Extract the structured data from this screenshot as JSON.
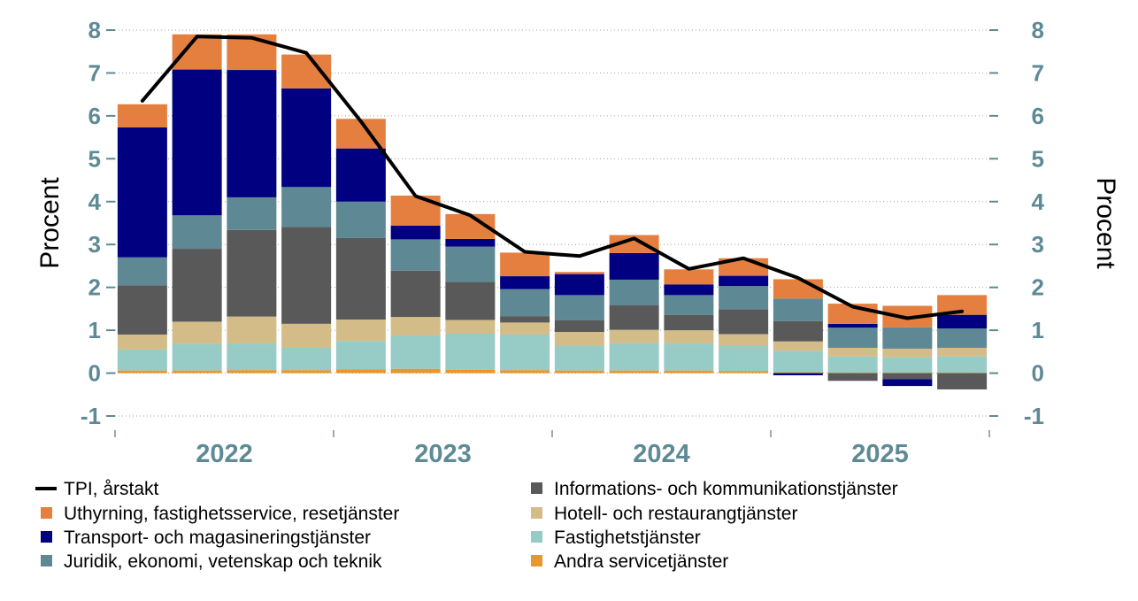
{
  "chart_data": {
    "type": "bar",
    "stacked": true,
    "title": "",
    "xlabel": "",
    "ylabel_left": "Procent",
    "ylabel_right": "Procent",
    "ylim": [
      -1,
      8
    ],
    "yticks": [
      "-1",
      "0",
      "1",
      "2",
      "3",
      "4",
      "5",
      "6",
      "7",
      "8"
    ],
    "year_labels": [
      "2022",
      "2023",
      "2024",
      "2025"
    ],
    "quarters": [
      "2022 Q1",
      "2022 Q2",
      "2022 Q3",
      "2022 Q4",
      "2023 Q1",
      "2023 Q2",
      "2023 Q3",
      "2023 Q4",
      "2024 Q1",
      "2024 Q2",
      "2024 Q3",
      "2024 Q4",
      "2025 Q1",
      "2025 Q2",
      "2025 Q3",
      "2025 Q4"
    ],
    "series": [
      {
        "name": "Andra servicetjänster",
        "color": "#e8962e",
        "values": [
          0.06,
          0.06,
          0.07,
          0.07,
          0.09,
          0.1,
          0.08,
          0.07,
          0.06,
          0.06,
          0.06,
          0.05,
          0.02,
          0.01,
          0.01,
          0.01
        ]
      },
      {
        "name": "Fastighetstjänster",
        "color": "#96cbc6",
        "values": [
          0.49,
          0.62,
          0.62,
          0.52,
          0.66,
          0.78,
          0.84,
          0.83,
          0.58,
          0.64,
          0.63,
          0.58,
          0.5,
          0.38,
          0.36,
          0.38
        ]
      },
      {
        "name": "Hotell- och restaurangtjänster",
        "color": "#d4bc88",
        "values": [
          0.35,
          0.52,
          0.63,
          0.56,
          0.5,
          0.43,
          0.32,
          0.28,
          0.32,
          0.31,
          0.31,
          0.28,
          0.22,
          0.2,
          0.2,
          0.2
        ]
      },
      {
        "name": "Informations- och kommunikationstjänster",
        "color": "#595959",
        "values": [
          1.15,
          1.7,
          2.02,
          2.26,
          1.9,
          1.08,
          0.89,
          0.15,
          0.27,
          0.57,
          0.36,
          0.58,
          0.47,
          -0.18,
          -0.14,
          -0.38
        ]
      },
      {
        "name": "Juridik, ekonomi, vetenskap och teknik",
        "color": "#5e8994",
        "values": [
          0.65,
          0.78,
          0.76,
          0.93,
          0.85,
          0.73,
          0.82,
          0.63,
          0.59,
          0.6,
          0.46,
          0.54,
          0.53,
          0.47,
          0.5,
          0.45
        ]
      },
      {
        "name": "Transport- och magasineringstjänster",
        "color": "#000080",
        "values": [
          3.03,
          3.4,
          2.97,
          2.3,
          1.24,
          0.32,
          0.18,
          0.3,
          0.49,
          0.62,
          0.25,
          0.24,
          -0.05,
          0.09,
          -0.16,
          0.32
        ]
      },
      {
        "name": "Uthyrning, fastighetsservice, resetjänster",
        "color": "#e57f3f",
        "values": [
          0.54,
          0.82,
          0.83,
          0.79,
          0.69,
          0.7,
          0.58,
          0.55,
          0.05,
          0.42,
          0.35,
          0.41,
          0.45,
          0.47,
          0.5,
          0.46
        ]
      }
    ],
    "line": {
      "name": "TPI, årstakt",
      "color": "#000000",
      "values": [
        6.35,
        7.85,
        7.82,
        7.47,
        5.87,
        4.13,
        3.68,
        2.83,
        2.73,
        3.14,
        2.43,
        2.68,
        2.22,
        1.55,
        1.28,
        1.44
      ]
    },
    "legend": {
      "placement": "bottom",
      "items": [
        {
          "label": "TPI, årstakt",
          "kind": "line",
          "color": "#000000"
        },
        {
          "label": "Informations- och kommunikationstjänster",
          "kind": "box",
          "color": "#595959"
        },
        {
          "label": "Uthyrning, fastighetsservice, resetjänster",
          "kind": "box",
          "color": "#e57f3f"
        },
        {
          "label": "Hotell- och restaurangtjänster",
          "kind": "box",
          "color": "#d4bc88"
        },
        {
          "label": "Transport- och magasineringstjänster",
          "kind": "box",
          "color": "#000080"
        },
        {
          "label": "Fastighetstjänster",
          "kind": "box",
          "color": "#96cbc6"
        },
        {
          "label": "Juridik, ekonomi, vetenskap och teknik",
          "kind": "box",
          "color": "#5e8994"
        },
        {
          "label": "Andra servicetjänster",
          "kind": "box",
          "color": "#e8962e"
        }
      ]
    },
    "grid": true
  }
}
